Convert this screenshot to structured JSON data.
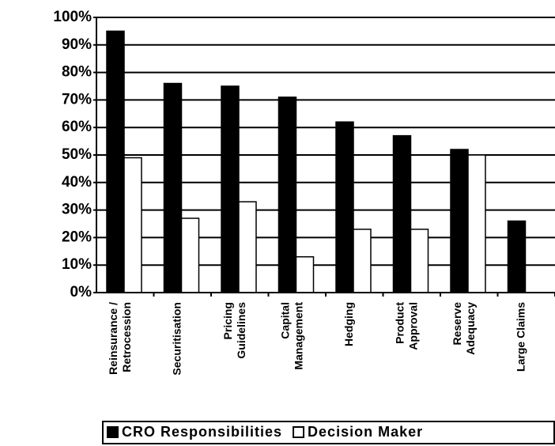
{
  "chart_data": {
    "type": "bar",
    "categories": [
      "Reinsurance / Retrocession",
      "Securitisation",
      "Pricing Guidelines",
      "Capital Management",
      "Hedging",
      "Product Approval",
      "Reserve Adequacy",
      "Large Claims"
    ],
    "series": [
      {
        "name": "CRO Responsibilities",
        "color": "#000000",
        "values": [
          95,
          76,
          75,
          71,
          62,
          57,
          52,
          26
        ]
      },
      {
        "name": "Decision Maker",
        "color": "#ffffff",
        "values": [
          49,
          27,
          33,
          13,
          23,
          23,
          50,
          0
        ]
      }
    ],
    "ylim": [
      0,
      100
    ],
    "yticks": [
      {
        "value": 0,
        "label": "0%"
      },
      {
        "value": 10,
        "label": "10%"
      },
      {
        "value": 20,
        "label": "20%"
      },
      {
        "value": 30,
        "label": "30%"
      },
      {
        "value": 40,
        "label": "40%"
      },
      {
        "value": 50,
        "label": "50%"
      },
      {
        "value": 60,
        "label": "60%"
      },
      {
        "value": 70,
        "label": "70%"
      },
      {
        "value": 80,
        "label": "80%"
      },
      {
        "value": 90,
        "label": "90%"
      },
      {
        "value": 100,
        "label": "100%"
      }
    ],
    "grid": true
  }
}
